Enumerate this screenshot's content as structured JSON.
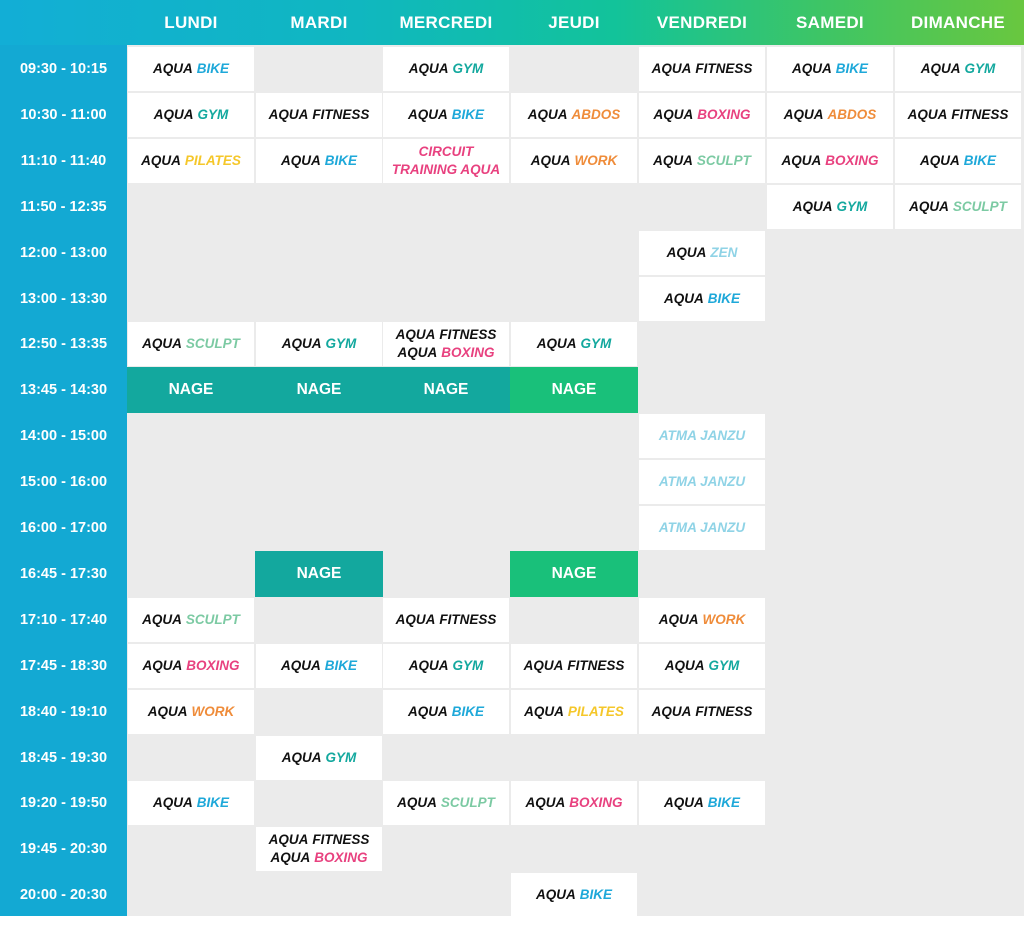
{
  "days": [
    "LUNDI",
    "MARDI",
    "MERCREDI",
    "JEUDI",
    "VENDREDI",
    "SAMEDI",
    "DIMANCHE"
  ],
  "times": [
    "09:30 - 10:15",
    "10:30 - 11:00",
    "11:10 - 11:40",
    "11:50 - 12:35",
    "12:00 - 13:00",
    "13:00 - 13:30",
    "12:50 - 13:35",
    "13:45 - 14:30",
    "14:00 - 15:00",
    "15:00 - 16:00",
    "16:00 - 17:00",
    "16:45 - 17:30",
    "17:10 - 17:40",
    "17:45 - 18:30",
    "18:40 - 19:10",
    "18:45 - 19:30",
    "19:20 - 19:50",
    "19:45 - 20:30",
    "20:00 - 20:30"
  ],
  "colors": {
    "time_column": "#13a9d3",
    "header_gradient": [
      "#12aed6",
      "#12c39a",
      "#69c73f"
    ],
    "empty_cell": "#ebebeb",
    "dark_text": "#111111",
    "bike": "#1ea8d9",
    "gym": "#13a89e",
    "fitness": "#111111",
    "abdos": "#ef8c3a",
    "boxing": "#e8417f",
    "pilates": "#f5c72a",
    "work": "#ef8c3a",
    "sculpt": "#7ccaa3",
    "zen": "#8fd3e6",
    "atma": "#8fd3e6",
    "nage_teal": "#13a89e",
    "nage_green": "#19c07a"
  },
  "cells": [
    {
      "row": 0,
      "col": 0,
      "lines": [
        {
          "p": "AQUA",
          "k": "BIKE",
          "c": "bike"
        }
      ]
    },
    {
      "row": 0,
      "col": 2,
      "lines": [
        {
          "p": "AQUA",
          "k": "GYM",
          "c": "gym"
        }
      ]
    },
    {
      "row": 0,
      "col": 4,
      "lines": [
        {
          "p": "AQUA",
          "k": "FITNESS",
          "c": "fitness"
        }
      ]
    },
    {
      "row": 0,
      "col": 5,
      "lines": [
        {
          "p": "AQUA",
          "k": "BIKE",
          "c": "bike"
        }
      ]
    },
    {
      "row": 0,
      "col": 6,
      "lines": [
        {
          "p": "AQUA",
          "k": "GYM",
          "c": "gym"
        }
      ]
    },
    {
      "row": 1,
      "col": 0,
      "lines": [
        {
          "p": "AQUA",
          "k": "GYM",
          "c": "gym"
        }
      ]
    },
    {
      "row": 1,
      "col": 1,
      "lines": [
        {
          "p": "AQUA",
          "k": "FITNESS",
          "c": "fitness"
        }
      ]
    },
    {
      "row": 1,
      "col": 2,
      "lines": [
        {
          "p": "AQUA",
          "k": "BIKE",
          "c": "bike"
        }
      ]
    },
    {
      "row": 1,
      "col": 3,
      "lines": [
        {
          "p": "AQUA",
          "k": "ABDOS",
          "c": "abdos"
        }
      ]
    },
    {
      "row": 1,
      "col": 4,
      "lines": [
        {
          "p": "AQUA",
          "k": "BOXING",
          "c": "boxing"
        }
      ]
    },
    {
      "row": 1,
      "col": 5,
      "lines": [
        {
          "p": "AQUA",
          "k": "ABDOS",
          "c": "abdos"
        }
      ]
    },
    {
      "row": 1,
      "col": 6,
      "lines": [
        {
          "p": "AQUA",
          "k": "FITNESS",
          "c": "fitness"
        }
      ]
    },
    {
      "row": 2,
      "col": 0,
      "lines": [
        {
          "p": "AQUA",
          "k": "PILATES",
          "c": "pilates"
        }
      ]
    },
    {
      "row": 2,
      "col": 1,
      "lines": [
        {
          "p": "AQUA",
          "k": "BIKE",
          "c": "bike"
        }
      ]
    },
    {
      "row": 2,
      "col": 2,
      "lines": [
        {
          "p": "",
          "k": "CIRCUIT",
          "c": "boxing"
        },
        {
          "p": "",
          "k": "TRAINING AQUA",
          "c": "boxing"
        }
      ]
    },
    {
      "row": 2,
      "col": 3,
      "lines": [
        {
          "p": "AQUA",
          "k": "WORK",
          "c": "work"
        }
      ]
    },
    {
      "row": 2,
      "col": 4,
      "lines": [
        {
          "p": "AQUA",
          "k": "SCULPT",
          "c": "sculpt"
        }
      ]
    },
    {
      "row": 2,
      "col": 5,
      "lines": [
        {
          "p": "AQUA",
          "k": "BOXING",
          "c": "boxing"
        }
      ]
    },
    {
      "row": 2,
      "col": 6,
      "lines": [
        {
          "p": "AQUA",
          "k": "BIKE",
          "c": "bike"
        }
      ]
    },
    {
      "row": 3,
      "col": 5,
      "lines": [
        {
          "p": "AQUA",
          "k": "GYM",
          "c": "gym"
        }
      ]
    },
    {
      "row": 3,
      "col": 6,
      "lines": [
        {
          "p": "AQUA",
          "k": "SCULPT",
          "c": "sculpt"
        }
      ]
    },
    {
      "row": 4,
      "col": 4,
      "lines": [
        {
          "p": "AQUA",
          "k": "ZEN",
          "c": "zen"
        }
      ]
    },
    {
      "row": 5,
      "col": 4,
      "lines": [
        {
          "p": "AQUA",
          "k": "BIKE",
          "c": "bike"
        }
      ]
    },
    {
      "row": 6,
      "col": 0,
      "lines": [
        {
          "p": "AQUA",
          "k": "SCULPT",
          "c": "sculpt"
        }
      ]
    },
    {
      "row": 6,
      "col": 1,
      "lines": [
        {
          "p": "AQUA",
          "k": "GYM",
          "c": "gym"
        }
      ]
    },
    {
      "row": 6,
      "col": 2,
      "lines": [
        {
          "p": "AQUA",
          "k": "FITNESS",
          "c": "fitness"
        },
        {
          "p": "AQUA",
          "k": "BOXING",
          "c": "boxing"
        }
      ]
    },
    {
      "row": 6,
      "col": 3,
      "lines": [
        {
          "p": "AQUA",
          "k": "GYM",
          "c": "gym"
        }
      ]
    },
    {
      "row": 7,
      "col": 0,
      "nage": true,
      "bg": "nage_teal",
      "lines": [
        {
          "p": "",
          "k": "NAGE",
          "c": ""
        }
      ]
    },
    {
      "row": 7,
      "col": 1,
      "nage": true,
      "bg": "nage_teal",
      "lines": [
        {
          "p": "",
          "k": "NAGE",
          "c": ""
        }
      ]
    },
    {
      "row": 7,
      "col": 2,
      "nage": true,
      "bg": "nage_teal",
      "lines": [
        {
          "p": "",
          "k": "NAGE",
          "c": ""
        }
      ]
    },
    {
      "row": 7,
      "col": 3,
      "nage": true,
      "bg": "nage_green",
      "lines": [
        {
          "p": "",
          "k": "NAGE",
          "c": ""
        }
      ]
    },
    {
      "row": 8,
      "col": 4,
      "lines": [
        {
          "p": "",
          "k": "ATMA JANZU",
          "c": "atma"
        }
      ]
    },
    {
      "row": 9,
      "col": 4,
      "lines": [
        {
          "p": "",
          "k": "ATMA JANZU",
          "c": "atma"
        }
      ]
    },
    {
      "row": 10,
      "col": 4,
      "lines": [
        {
          "p": "",
          "k": "ATMA JANZU",
          "c": "atma"
        }
      ]
    },
    {
      "row": 11,
      "col": 1,
      "nage": true,
      "bg": "nage_teal",
      "lines": [
        {
          "p": "",
          "k": "NAGE",
          "c": ""
        }
      ]
    },
    {
      "row": 11,
      "col": 3,
      "nage": true,
      "bg": "nage_green",
      "lines": [
        {
          "p": "",
          "k": "NAGE",
          "c": ""
        }
      ]
    },
    {
      "row": 12,
      "col": 0,
      "lines": [
        {
          "p": "AQUA",
          "k": "SCULPT",
          "c": "sculpt"
        }
      ]
    },
    {
      "row": 12,
      "col": 2,
      "lines": [
        {
          "p": "AQUA",
          "k": "FITNESS",
          "c": "fitness"
        }
      ]
    },
    {
      "row": 12,
      "col": 4,
      "lines": [
        {
          "p": "AQUA",
          "k": "WORK",
          "c": "work"
        }
      ]
    },
    {
      "row": 13,
      "col": 0,
      "lines": [
        {
          "p": "AQUA",
          "k": "BOXING",
          "c": "boxing"
        }
      ]
    },
    {
      "row": 13,
      "col": 1,
      "lines": [
        {
          "p": "AQUA",
          "k": "BIKE",
          "c": "bike"
        }
      ]
    },
    {
      "row": 13,
      "col": 2,
      "lines": [
        {
          "p": "AQUA",
          "k": "GYM",
          "c": "gym"
        }
      ]
    },
    {
      "row": 13,
      "col": 3,
      "lines": [
        {
          "p": "AQUA",
          "k": "FITNESS",
          "c": "fitness"
        }
      ]
    },
    {
      "row": 13,
      "col": 4,
      "lines": [
        {
          "p": "AQUA",
          "k": "GYM",
          "c": "gym"
        }
      ]
    },
    {
      "row": 14,
      "col": 0,
      "lines": [
        {
          "p": "AQUA",
          "k": "WORK",
          "c": "work"
        }
      ]
    },
    {
      "row": 14,
      "col": 2,
      "lines": [
        {
          "p": "AQUA",
          "k": "BIKE",
          "c": "bike"
        }
      ]
    },
    {
      "row": 14,
      "col": 3,
      "lines": [
        {
          "p": "AQUA",
          "k": "PILATES",
          "c": "pilates"
        }
      ]
    },
    {
      "row": 14,
      "col": 4,
      "lines": [
        {
          "p": "AQUA",
          "k": "FITNESS",
          "c": "fitness"
        }
      ]
    },
    {
      "row": 15,
      "col": 1,
      "lines": [
        {
          "p": "AQUA",
          "k": "GYM",
          "c": "gym"
        }
      ]
    },
    {
      "row": 16,
      "col": 0,
      "lines": [
        {
          "p": "AQUA",
          "k": "BIKE",
          "c": "bike"
        }
      ]
    },
    {
      "row": 16,
      "col": 2,
      "lines": [
        {
          "p": "AQUA",
          "k": "SCULPT",
          "c": "sculpt"
        }
      ]
    },
    {
      "row": 16,
      "col": 3,
      "lines": [
        {
          "p": "AQUA",
          "k": "BOXING",
          "c": "boxing"
        }
      ]
    },
    {
      "row": 16,
      "col": 4,
      "lines": [
        {
          "p": "AQUA",
          "k": "BIKE",
          "c": "bike"
        }
      ]
    },
    {
      "row": 17,
      "col": 1,
      "lines": [
        {
          "p": "AQUA",
          "k": "FITNESS",
          "c": "fitness"
        },
        {
          "p": "AQUA",
          "k": "BOXING",
          "c": "boxing"
        }
      ]
    },
    {
      "row": 18,
      "col": 3,
      "lines": [
        {
          "p": "AQUA",
          "k": "BIKE",
          "c": "bike"
        }
      ]
    }
  ]
}
